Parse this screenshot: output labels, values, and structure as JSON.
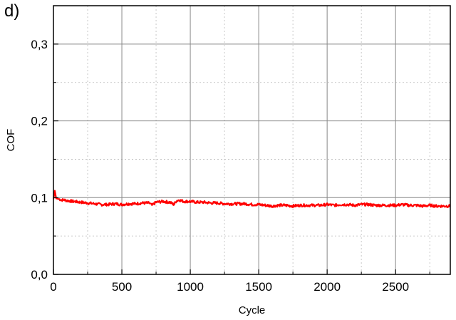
{
  "panel_label": "d)",
  "chart_data": {
    "type": "line",
    "xlabel": "Cycle",
    "ylabel": "COF",
    "xlim": [
      0,
      2900
    ],
    "ylim": [
      0,
      0.35
    ],
    "x_ticks": [
      0,
      500,
      1000,
      1500,
      2000,
      2500
    ],
    "x_tick_labels": [
      "0",
      "500",
      "1000",
      "1500",
      "2000",
      "2500"
    ],
    "y_ticks": [
      0.0,
      0.1,
      0.2,
      0.3
    ],
    "y_tick_labels": [
      "0,0",
      "0,1",
      "0,2",
      "0,3"
    ],
    "grid": true,
    "grid_style": "major solid grey, minor dotted",
    "series": [
      {
        "color": "#ff0000",
        "x": [
          0,
          10,
          20,
          40,
          60,
          80,
          100,
          150,
          200,
          250,
          300,
          350,
          400,
          450,
          500,
          550,
          600,
          650,
          700,
          720,
          750,
          800,
          850,
          880,
          900,
          920,
          950,
          1000,
          1050,
          1100,
          1150,
          1200,
          1250,
          1300,
          1350,
          1400,
          1450,
          1500,
          1550,
          1600,
          1650,
          1700,
          1750,
          1800,
          1850,
          1900,
          1950,
          2000,
          2050,
          2100,
          2150,
          2200,
          2250,
          2300,
          2350,
          2400,
          2450,
          2500,
          2550,
          2600,
          2650,
          2700,
          2750,
          2800,
          2850,
          2900
        ],
        "y": [
          0.098,
          0.109,
          0.099,
          0.098,
          0.097,
          0.097,
          0.096,
          0.095,
          0.094,
          0.093,
          0.092,
          0.091,
          0.091,
          0.092,
          0.091,
          0.092,
          0.092,
          0.093,
          0.093,
          0.09,
          0.094,
          0.095,
          0.094,
          0.091,
          0.096,
          0.097,
          0.095,
          0.095,
          0.094,
          0.094,
          0.093,
          0.093,
          0.092,
          0.092,
          0.092,
          0.092,
          0.091,
          0.091,
          0.09,
          0.089,
          0.09,
          0.09,
          0.089,
          0.09,
          0.09,
          0.09,
          0.09,
          0.091,
          0.09,
          0.091,
          0.091,
          0.09,
          0.091,
          0.091,
          0.09,
          0.09,
          0.09,
          0.09,
          0.091,
          0.09,
          0.09,
          0.089,
          0.09,
          0.089,
          0.089,
          0.089
        ]
      }
    ]
  }
}
